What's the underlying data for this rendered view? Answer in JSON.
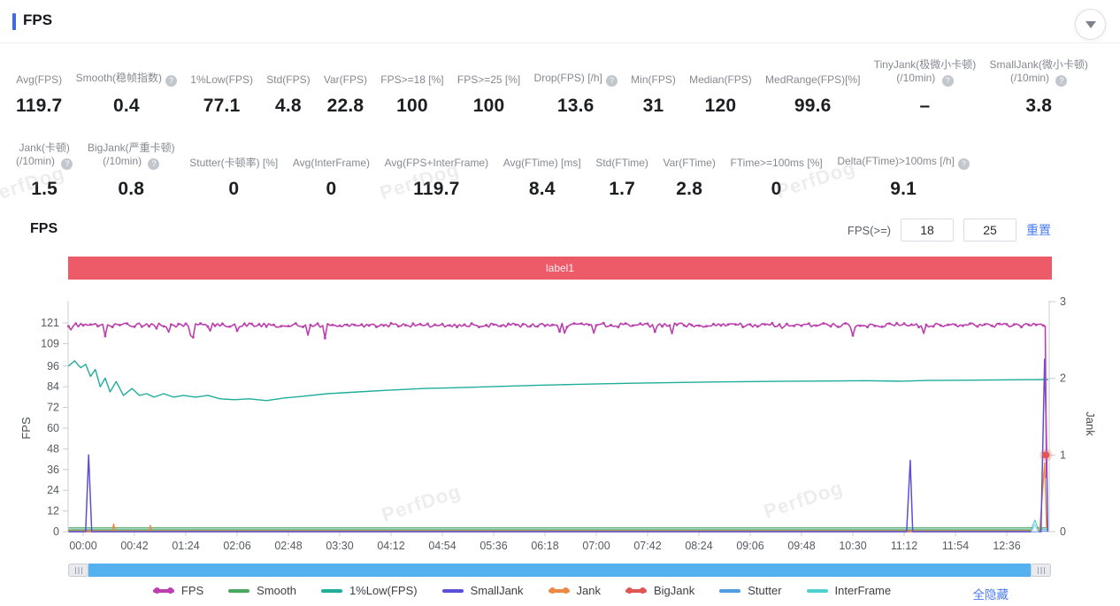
{
  "header": {
    "title": "FPS"
  },
  "watermark": {
    "text": "PerfDog"
  },
  "stats": {
    "row1": [
      {
        "label": "Avg(FPS)",
        "value": "119.7"
      },
      {
        "label": "Smooth(稳帧指数)",
        "help": true,
        "value": "0.4"
      },
      {
        "label": "1%Low(FPS)",
        "value": "77.1"
      },
      {
        "label": "Std(FPS)",
        "value": "4.8"
      },
      {
        "label": "Var(FPS)",
        "value": "22.8"
      },
      {
        "label": "FPS>=18 [%]",
        "value": "100"
      },
      {
        "label": "FPS>=25 [%]",
        "value": "100"
      },
      {
        "label": "Drop(FPS) [/h]",
        "help": true,
        "value": "13.6"
      },
      {
        "label": "Min(FPS)",
        "value": "31"
      },
      {
        "label": "Median(FPS)",
        "value": "120"
      },
      {
        "label": "MedRange(FPS)[%]",
        "value": "99.6"
      },
      {
        "label": "TinyJank(极微小卡顿)",
        "label2": "(/10min)",
        "help": true,
        "value": "–"
      },
      {
        "label": "SmallJank(微小卡顿)",
        "label2": "(/10min)",
        "help": true,
        "value": "3.8"
      }
    ],
    "row2": [
      {
        "label": "Jank(卡顿)",
        "label2": "(/10min)",
        "help": true,
        "value": "1.5"
      },
      {
        "label": "BigJank(严重卡顿)",
        "label2": "(/10min)",
        "help": true,
        "value": "0.8"
      },
      {
        "label": "Stutter(卡顿率) [%]",
        "value": "0"
      },
      {
        "label": "Avg(InterFrame)",
        "value": "0"
      },
      {
        "label": "Avg(FPS+InterFrame)",
        "value": "119.7"
      },
      {
        "label": "Avg(FTime) [ms]",
        "value": "8.4"
      },
      {
        "label": "Std(FTime)",
        "value": "1.7"
      },
      {
        "label": "Var(FTime)",
        "value": "2.8"
      },
      {
        "label": "FTime>=100ms [%]",
        "value": "0"
      },
      {
        "label": "Delta(FTime)>100ms [/h]",
        "help": true,
        "value": "9.1"
      }
    ]
  },
  "section": {
    "title": "FPS"
  },
  "controls": {
    "fps_threshold_label": "FPS(>=)",
    "threshold1": "18",
    "threshold2": "25",
    "reset": "重置",
    "hide_all": "全隐藏"
  },
  "banner": {
    "label": "label1"
  },
  "chart_data": {
    "type": "line",
    "title": "FPS",
    "x_axis": {
      "unit": "mm:ss",
      "tick_interval_sec": 42,
      "labels": [
        "00:00",
        "00:42",
        "01:24",
        "02:06",
        "02:48",
        "03:30",
        "04:12",
        "04:54",
        "05:36",
        "06:18",
        "07:00",
        "07:42",
        "08:24",
        "09:06",
        "09:48",
        "10:30",
        "11:12",
        "11:54",
        "12:36"
      ]
    },
    "y_left": {
      "label": "FPS",
      "ticks": [
        0,
        12,
        24,
        36,
        48,
        60,
        72,
        84,
        96,
        109,
        121
      ],
      "range": [
        0,
        133
      ]
    },
    "y_right": {
      "label": "Jank",
      "ticks": [
        0,
        1,
        2,
        3
      ],
      "range": [
        0,
        3
      ]
    },
    "grid": false,
    "legend_position": "bottom",
    "series": [
      {
        "name": "FPS",
        "axis": "left",
        "color": "#bb3fae",
        "style": "noisy-dots",
        "baseline": 119.7,
        "noise": 2.4,
        "dip_chance": 0.05,
        "t_range": [
          -12,
          786
        ],
        "end_points": [
          [
            787.5,
            119
          ],
          [
            788.5,
            31
          ]
        ]
      },
      {
        "name": "Smooth",
        "axis": "right",
        "color": "#49a85f",
        "points": [
          [
            -12,
            0.05
          ],
          [
            789,
            0.05
          ]
        ]
      },
      {
        "name": "1%Low(FPS)",
        "axis": "left",
        "color": "#1fae9a",
        "points": [
          [
            -12,
            96
          ],
          [
            -7,
            99
          ],
          [
            -2,
            95
          ],
          [
            2,
            97
          ],
          [
            6,
            90
          ],
          [
            10,
            94
          ],
          [
            14,
            84
          ],
          [
            18,
            89
          ],
          [
            22,
            81
          ],
          [
            27,
            87
          ],
          [
            33,
            79
          ],
          [
            40,
            83
          ],
          [
            46,
            79
          ],
          [
            52,
            80
          ],
          [
            58,
            78
          ],
          [
            66,
            80
          ],
          [
            74,
            78
          ],
          [
            82,
            79
          ],
          [
            92,
            78
          ],
          [
            102,
            79
          ],
          [
            112,
            77
          ],
          [
            124,
            76.5
          ],
          [
            136,
            77
          ],
          [
            150,
            76
          ],
          [
            165,
            77.5
          ],
          [
            180,
            78.5
          ],
          [
            200,
            80
          ],
          [
            225,
            81
          ],
          [
            250,
            82
          ],
          [
            280,
            83
          ],
          [
            310,
            83.5
          ],
          [
            340,
            84.2
          ],
          [
            370,
            84.8
          ],
          [
            400,
            85.3
          ],
          [
            430,
            85.8
          ],
          [
            460,
            86.2
          ],
          [
            490,
            86.5
          ],
          [
            520,
            86.8
          ],
          [
            550,
            87
          ],
          [
            580,
            87.2
          ],
          [
            610,
            87.3
          ],
          [
            640,
            87.5
          ],
          [
            670,
            87.2
          ],
          [
            690,
            87.6
          ],
          [
            720,
            87.8
          ],
          [
            750,
            88
          ],
          [
            790,
            88.2
          ]
        ]
      },
      {
        "name": "SmallJank",
        "axis": "right",
        "color": "#5a4fd8",
        "points": [
          [
            -12,
            0
          ],
          [
            2,
            0
          ],
          [
            4.5,
            1.0
          ],
          [
            7,
            0
          ],
          [
            674,
            0
          ],
          [
            677,
            0.93
          ],
          [
            679,
            0
          ],
          [
            784,
            0
          ],
          [
            787,
            2.25
          ],
          [
            788.5,
            1.2
          ],
          [
            789.5,
            0
          ]
        ]
      },
      {
        "name": "Jank",
        "axis": "right",
        "color": "#ec8a43",
        "points": [
          [
            -12,
            0.02
          ],
          [
            24,
            0.02
          ],
          [
            25,
            0.1
          ],
          [
            26,
            0.02
          ],
          [
            54,
            0.02
          ],
          [
            55,
            0.08
          ],
          [
            56,
            0.02
          ],
          [
            783,
            0.02
          ],
          [
            787,
            0.9
          ],
          [
            788.6,
            0.05
          ]
        ]
      },
      {
        "name": "BigJank",
        "axis": "right",
        "color": "#e25555",
        "points": [
          [
            -12,
            0
          ],
          [
            780,
            0
          ]
        ],
        "end_dot": [
          788,
          1
        ]
      },
      {
        "name": "Stutter",
        "axis": "right",
        "color": "#4f9de0",
        "points": [
          [
            -12,
            0.01
          ],
          [
            789,
            0.01
          ]
        ]
      },
      {
        "name": "InterFrame",
        "axis": "right",
        "color": "#4fd2cf",
        "points": [
          [
            -12,
            0.03
          ],
          [
            776,
            0.03
          ],
          [
            779,
            0.15
          ],
          [
            782,
            0.03
          ],
          [
            789,
            0.03
          ]
        ]
      }
    ]
  },
  "legend": {
    "items": [
      {
        "label": "FPS",
        "color": "#bb3fae",
        "marker": "line-dots"
      },
      {
        "label": "Smooth",
        "color": "#49a85f",
        "marker": "line"
      },
      {
        "label": "1%Low(FPS)",
        "color": "#1fae9a",
        "marker": "line"
      },
      {
        "label": "SmallJank",
        "color": "#5a4fd8",
        "marker": "line"
      },
      {
        "label": "Jank",
        "color": "#ec8a43",
        "marker": "line-dots"
      },
      {
        "label": "BigJank",
        "color": "#e25555",
        "marker": "line-dots"
      },
      {
        "label": "Stutter",
        "color": "#4f9de0",
        "marker": "line"
      },
      {
        "label": "InterFrame",
        "color": "#4fd2cf",
        "marker": "line"
      }
    ]
  }
}
